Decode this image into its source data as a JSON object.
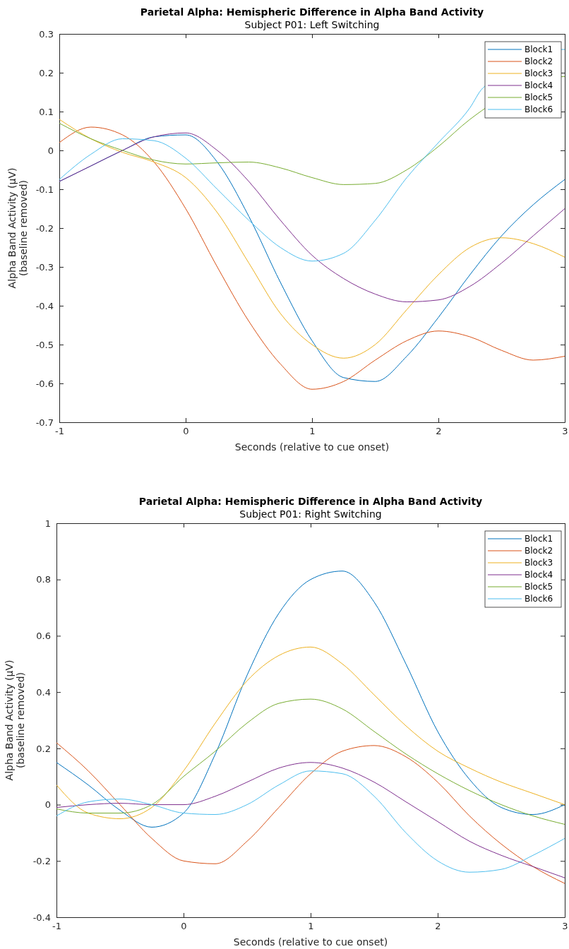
{
  "chart_data": [
    {
      "type": "line",
      "title": "Parietal Alpha: Hemispheric Difference in Alpha Band Activity",
      "subtitle": "Subject P01: Left Switching",
      "xlabel": "Seconds (relative to cue onset)",
      "ylabel": "Alpha Band Activity (μV)\n(baseline removed)",
      "x": [
        -1,
        -0.75,
        -0.5,
        -0.25,
        0,
        0.25,
        0.5,
        0.75,
        1,
        1.25,
        1.5,
        1.75,
        2,
        2.25,
        2.5,
        2.75,
        3
      ],
      "xlim": [
        -1,
        3
      ],
      "xticks": [
        -1,
        0,
        1,
        2,
        3
      ],
      "ylim": [
        -0.7,
        0.3
      ],
      "yticks": [
        -0.7,
        -0.6,
        -0.5,
        -0.4,
        -0.3,
        -0.2,
        -0.1,
        0,
        0.1,
        0.2,
        0.3
      ],
      "legend": "top right",
      "grid": false,
      "series": [
        {
          "name": "Block1",
          "color": "#0072bd",
          "values": [
            -0.08,
            -0.04,
            0.0,
            0.035,
            0.04,
            -0.03,
            -0.17,
            -0.34,
            -0.49,
            -0.585,
            -0.595,
            -0.53,
            -0.43,
            -0.32,
            -0.22,
            -0.14,
            -0.075
          ]
        },
        {
          "name": "Block2",
          "color": "#d95319",
          "values": [
            0.02,
            0.06,
            0.04,
            -0.03,
            -0.15,
            -0.3,
            -0.44,
            -0.55,
            -0.615,
            -0.595,
            -0.54,
            -0.49,
            -0.465,
            -0.48,
            -0.515,
            -0.54,
            -0.53
          ]
        },
        {
          "name": "Block3",
          "color": "#edb120",
          "values": [
            0.08,
            0.03,
            -0.005,
            -0.03,
            -0.07,
            -0.16,
            -0.29,
            -0.42,
            -0.5,
            -0.535,
            -0.5,
            -0.41,
            -0.32,
            -0.25,
            -0.225,
            -0.24,
            -0.275
          ]
        },
        {
          "name": "Block4",
          "color": "#7e2f8e",
          "values": [
            -0.08,
            -0.04,
            0.0,
            0.035,
            0.045,
            0.0,
            -0.08,
            -0.18,
            -0.27,
            -0.33,
            -0.37,
            -0.39,
            -0.385,
            -0.35,
            -0.29,
            -0.22,
            -0.15
          ]
        },
        {
          "name": "Block5",
          "color": "#77ac30",
          "x": [
            -1,
            -0.75,
            -0.5,
            -0.25,
            0,
            0.25,
            0.5,
            0.75,
            1,
            1.25,
            1.5,
            1.75,
            2,
            2.25,
            2.99,
            3
          ],
          "values": [
            0.07,
            0.03,
            0.0,
            -0.025,
            -0.035,
            -0.032,
            -0.03,
            -0.045,
            -0.07,
            -0.088,
            -0.085,
            -0.05,
            0.01,
            0.08,
            0.19,
            0.19
          ]
        },
        {
          "name": "Block6",
          "color": "#4dbeee",
          "x": [
            -1,
            -0.75,
            -0.5,
            -0.25,
            0,
            0.25,
            0.5,
            0.75,
            1,
            1.25,
            1.5,
            1.75,
            2,
            2.25,
            2.35,
            2.99,
            3
          ],
          "values": [
            -0.075,
            -0.01,
            0.03,
            0.025,
            -0.02,
            -0.1,
            -0.18,
            -0.25,
            -0.285,
            -0.265,
            -0.18,
            -0.07,
            0.02,
            0.11,
            0.16,
            0.26,
            0.26
          ]
        }
      ]
    },
    {
      "type": "line",
      "title": "Parietal Alpha: Hemispheric Difference in Alpha Band Activity",
      "subtitle": "Subject P01: Right Switching",
      "xlabel": "Seconds (relative to cue onset)",
      "ylabel": "Alpha Band Activity (μV)\n(baseline removed)",
      "x": [
        -1,
        -0.75,
        -0.5,
        -0.25,
        0,
        0.25,
        0.5,
        0.75,
        1,
        1.25,
        1.5,
        1.75,
        2,
        2.25,
        2.5,
        2.75,
        3
      ],
      "xlim": [
        -1,
        3
      ],
      "xticks": [
        -1,
        0,
        1,
        2,
        3
      ],
      "ylim": [
        -0.4,
        1
      ],
      "yticks": [
        -0.4,
        -0.2,
        0,
        0.2,
        0.4,
        0.6,
        0.8,
        1
      ],
      "legend": "top right",
      "grid": false,
      "series": [
        {
          "name": "Block1",
          "color": "#0072bd",
          "values": [
            0.15,
            0.07,
            -0.02,
            -0.08,
            -0.03,
            0.18,
            0.46,
            0.68,
            0.8,
            0.83,
            0.72,
            0.5,
            0.26,
            0.09,
            -0.01,
            -0.035,
            0.0
          ]
        },
        {
          "name": "Block2",
          "color": "#d95319",
          "values": [
            0.22,
            0.12,
            0.0,
            -0.12,
            -0.2,
            -0.21,
            -0.13,
            -0.01,
            0.11,
            0.19,
            0.21,
            0.17,
            0.08,
            -0.04,
            -0.14,
            -0.22,
            -0.28
          ]
        },
        {
          "name": "Block3",
          "color": "#edb120",
          "values": [
            0.07,
            -0.03,
            -0.05,
            -0.01,
            0.12,
            0.29,
            0.44,
            0.53,
            0.56,
            0.5,
            0.39,
            0.28,
            0.19,
            0.13,
            0.08,
            0.04,
            0.0
          ]
        },
        {
          "name": "Block4",
          "color": "#7e2f8e",
          "values": [
            -0.01,
            0.0,
            0.005,
            0.0,
            0.0,
            0.03,
            0.08,
            0.13,
            0.15,
            0.13,
            0.08,
            0.01,
            -0.06,
            -0.13,
            -0.18,
            -0.22,
            -0.26
          ]
        },
        {
          "name": "Block5",
          "color": "#77ac30",
          "values": [
            -0.015,
            -0.03,
            -0.03,
            0.0,
            0.1,
            0.19,
            0.29,
            0.36,
            0.375,
            0.34,
            0.26,
            0.18,
            0.11,
            0.05,
            0.0,
            -0.04,
            -0.07
          ]
        },
        {
          "name": "Block6",
          "color": "#4dbeee",
          "values": [
            -0.04,
            0.01,
            0.02,
            0.0,
            -0.03,
            -0.035,
            0.0,
            0.07,
            0.12,
            0.11,
            0.03,
            -0.1,
            -0.2,
            -0.24,
            -0.23,
            -0.18,
            -0.12
          ]
        }
      ]
    }
  ]
}
